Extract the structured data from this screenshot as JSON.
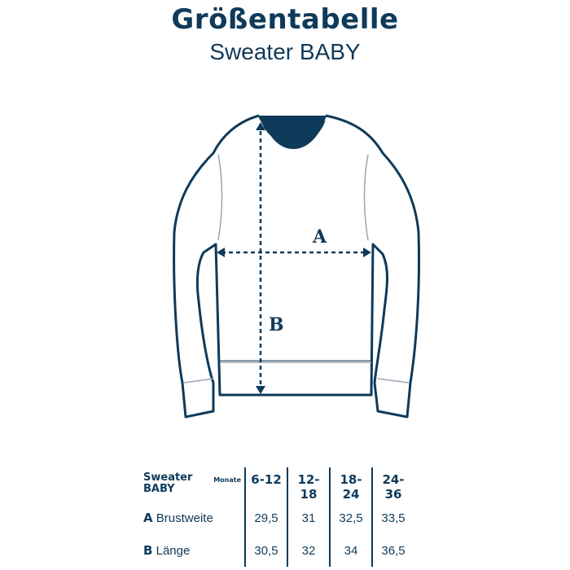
{
  "title": "Größentabelle",
  "subtitle": "Sweater BABY",
  "diagram": {
    "label_a": "A",
    "label_b": "B",
    "line_color": "#0f3a5a"
  },
  "table": {
    "product_line1": "Sweater",
    "product_line2": "BABY",
    "unit_label": "Monate",
    "sizes": [
      "6-12",
      "12-18",
      "18-24",
      "24-36"
    ],
    "rows": [
      {
        "letter": "A",
        "label": "Brustweite",
        "values": [
          "29,5",
          "31",
          "32,5",
          "33,5"
        ]
      },
      {
        "letter": "B",
        "label": "Länge",
        "values": [
          "30,5",
          "32",
          "34",
          "36,5"
        ]
      }
    ]
  }
}
